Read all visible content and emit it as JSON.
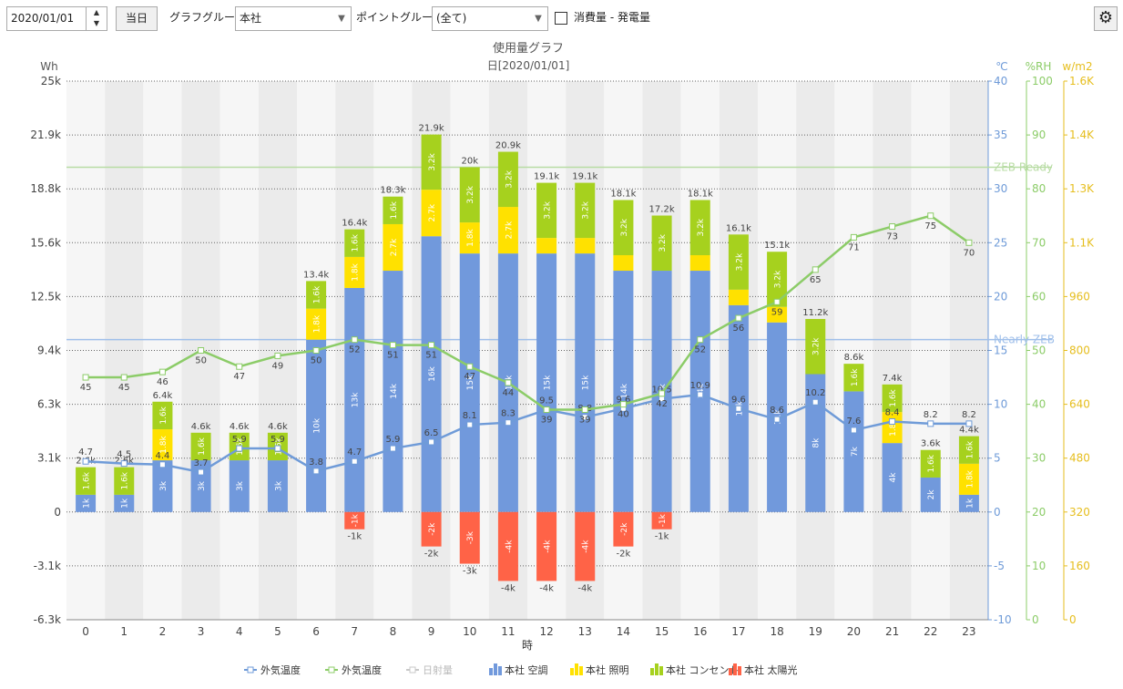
{
  "toolbar": {
    "date": "2020/01/01",
    "today_button": "当日",
    "graph_group_label": "グラフグループ:",
    "graph_group": "本社",
    "point_group_label": "ポイントグループ:",
    "point_group": "(全て)",
    "checkbox_label": "消費量 - 発電量"
  },
  "chart_data": {
    "type": "bar",
    "title": "使用量グラフ",
    "subtitle": "日[2020/01/01]",
    "x_label": "時",
    "y_label": "Wh",
    "y2_label": "℃",
    "y3_label": "%RH",
    "y4_label": "w/m2",
    "categories": [
      "0",
      "1",
      "2",
      "3",
      "4",
      "5",
      "6",
      "7",
      "8",
      "9",
      "10",
      "11",
      "12",
      "13",
      "14",
      "15",
      "16",
      "17",
      "18",
      "19",
      "20",
      "21",
      "22",
      "23"
    ],
    "ylim": [
      -6250,
      25000
    ],
    "yticks": [
      {
        "value": -6250,
        "label": "-6.3k"
      },
      {
        "value": -3125,
        "label": "-3.1k"
      },
      0,
      {
        "value": 3125,
        "label": "3.1k"
      },
      {
        "value": 6250,
        "label": "6.3k"
      },
      {
        "value": 9375,
        "label": "9.4k"
      },
      {
        "value": 12500,
        "label": "12.5k"
      },
      {
        "value": 15625,
        "label": "15.6k"
      },
      {
        "value": 18750,
        "label": "18.8k"
      },
      {
        "value": 21875,
        "label": "21.9k"
      },
      {
        "value": 25000,
        "label": "25k"
      }
    ],
    "y2lim": [
      -10,
      40
    ],
    "y2ticks": [
      -10,
      -5,
      0,
      5,
      10,
      15,
      20,
      25,
      30,
      35,
      40
    ],
    "y3lim": [
      0,
      100
    ],
    "y3ticks": [
      0,
      10,
      20,
      30,
      40,
      50,
      60,
      70,
      80,
      90,
      100
    ],
    "y4lim": [
      0,
      1600
    ],
    "y4ticks": [
      0,
      160,
      320,
      480,
      640,
      800,
      960,
      {
        "value": 1120,
        "label": "1.1K"
      },
      {
        "value": 1280,
        "label": "1.3K"
      },
      {
        "value": 1440,
        "label": "1.4K"
      },
      {
        "value": 1600,
        "label": "1.6K"
      }
    ],
    "grid": true,
    "series": [
      {
        "name": "本社 空調",
        "color": "#7199dc",
        "kind": "bar",
        "values": [
          1000,
          1000,
          3000,
          3000,
          3000,
          3000,
          10000,
          13000,
          14000,
          16000,
          15000,
          15000,
          15000,
          15000,
          14000,
          14000,
          14000,
          12000,
          11000,
          8000,
          7000,
          4000,
          2000,
          1000
        ],
        "value_labels": [
          "1k",
          "1k",
          "3k",
          "3k",
          "3k",
          "3k",
          "10k",
          "13k",
          "14k",
          "16k",
          "15k",
          "15k",
          "15k",
          "15k",
          "14k",
          "14k",
          "14k",
          "12k",
          "11k",
          "8k",
          "7k",
          "4k",
          "2k",
          "1k"
        ]
      },
      {
        "name": "本社 照明",
        "color": "#ffe100",
        "kind": "bar",
        "values": [
          0,
          0,
          1800,
          0,
          0,
          0,
          1800,
          1800,
          2700,
          2700,
          1800,
          2700,
          900,
          900,
          900,
          0,
          900,
          900,
          900,
          0,
          0,
          1800,
          0,
          1800
        ],
        "value_labels": [
          null,
          null,
          "1.8k",
          null,
          null,
          null,
          "1.8k",
          "1.8k",
          "2.7k",
          "2.7k",
          "1.8k",
          "2.7k",
          null,
          null,
          null,
          null,
          null,
          null,
          null,
          null,
          null,
          "1.8k",
          null,
          "1.8k"
        ]
      },
      {
        "name": "本社 コンセント",
        "color": "#a6d11e",
        "kind": "bar",
        "values": [
          1600,
          1600,
          1600,
          1600,
          1600,
          1600,
          1600,
          1600,
          1600,
          3200,
          3200,
          3200,
          3200,
          3200,
          3200,
          3200,
          3200,
          3200,
          3200,
          3200,
          1600,
          1600,
          1600,
          1600
        ],
        "value_labels": [
          "1.6k",
          "1.6k",
          "1.6k",
          "1.6k",
          "1.6k",
          "1.6k",
          "1.6k",
          "1.6k",
          "1.6k",
          "3.2k",
          "3.2k",
          "3.2k",
          "3.2k",
          "3.2k",
          "3.2k",
          "3.2k",
          "3.2k",
          "3.2k",
          "3.2k",
          "3.2k",
          "1.6k",
          "1.6k",
          "1.6k",
          "1.6k"
        ]
      },
      {
        "name": "本社 太陽光",
        "color": "#ff6347",
        "kind": "bar",
        "values": [
          0,
          0,
          0,
          0,
          0,
          0,
          0,
          -1000,
          0,
          -2000,
          -3000,
          -4000,
          -4000,
          -4000,
          -2000,
          -1000,
          0,
          0,
          0,
          0,
          0,
          0,
          0,
          0
        ],
        "value_labels": [
          null,
          null,
          null,
          null,
          null,
          null,
          null,
          "-1k",
          null,
          "-2k",
          "-3k",
          "-4k",
          "-4k",
          "-4k",
          "-2k",
          "-1k",
          null,
          null,
          null,
          null,
          null,
          null,
          null,
          null
        ]
      },
      {
        "name": "外気温度",
        "color": "#6f9bd8",
        "kind": "line",
        "axis": "y2",
        "values": [
          4.7,
          4.5,
          4.4,
          3.7,
          5.9,
          5.9,
          3.8,
          4.7,
          5.9,
          6.5,
          8.1,
          8.3,
          9.5,
          8.8,
          9.6,
          10.5,
          10.9,
          9.6,
          8.6,
          10.2,
          7.6,
          8.4,
          8.2,
          8.2
        ]
      },
      {
        "name": "外気温度",
        "color": "#8ccc68",
        "kind": "line",
        "axis": "y3",
        "values": [
          45,
          45,
          46,
          50,
          47,
          49,
          50,
          52,
          51,
          51,
          47,
          44,
          39,
          39,
          40,
          42,
          52,
          56,
          59,
          65,
          71,
          73,
          75,
          70
        ]
      }
    ],
    "hidden_series": [
      {
        "name": "日射量",
        "color": "#c8c8c8",
        "axis": "y4"
      }
    ],
    "totals": [
      2600,
      2600,
      6400,
      4600,
      4600,
      4600,
      13400,
      16400,
      18300,
      21900,
      20000,
      20900,
      19100,
      19100,
      18100,
      17200,
      18100,
      16100,
      15100,
      11200,
      8600,
      7400,
      3600,
      4400
    ],
    "total_labels": [
      "2.6k",
      "2.6k",
      "6.4k",
      "4.6k",
      "4.6k",
      "4.6k",
      "13.4k",
      "16.4k",
      "18.3k",
      "21.9k",
      "20k",
      "20.9k",
      "19.1k",
      "19.1k",
      "18.1k",
      "17.2k",
      "18.1k",
      "16.1k",
      "15.1k",
      "11.2k",
      "8.6k",
      "7.4k",
      "3.6k",
      "4.4k"
    ],
    "ref_lines": [
      {
        "label": "ZEB Ready",
        "value": 20000,
        "color": "#b8dca4"
      },
      {
        "label": "Nearly ZEB",
        "value": 10000,
        "color": "#9fbfea"
      }
    ]
  }
}
